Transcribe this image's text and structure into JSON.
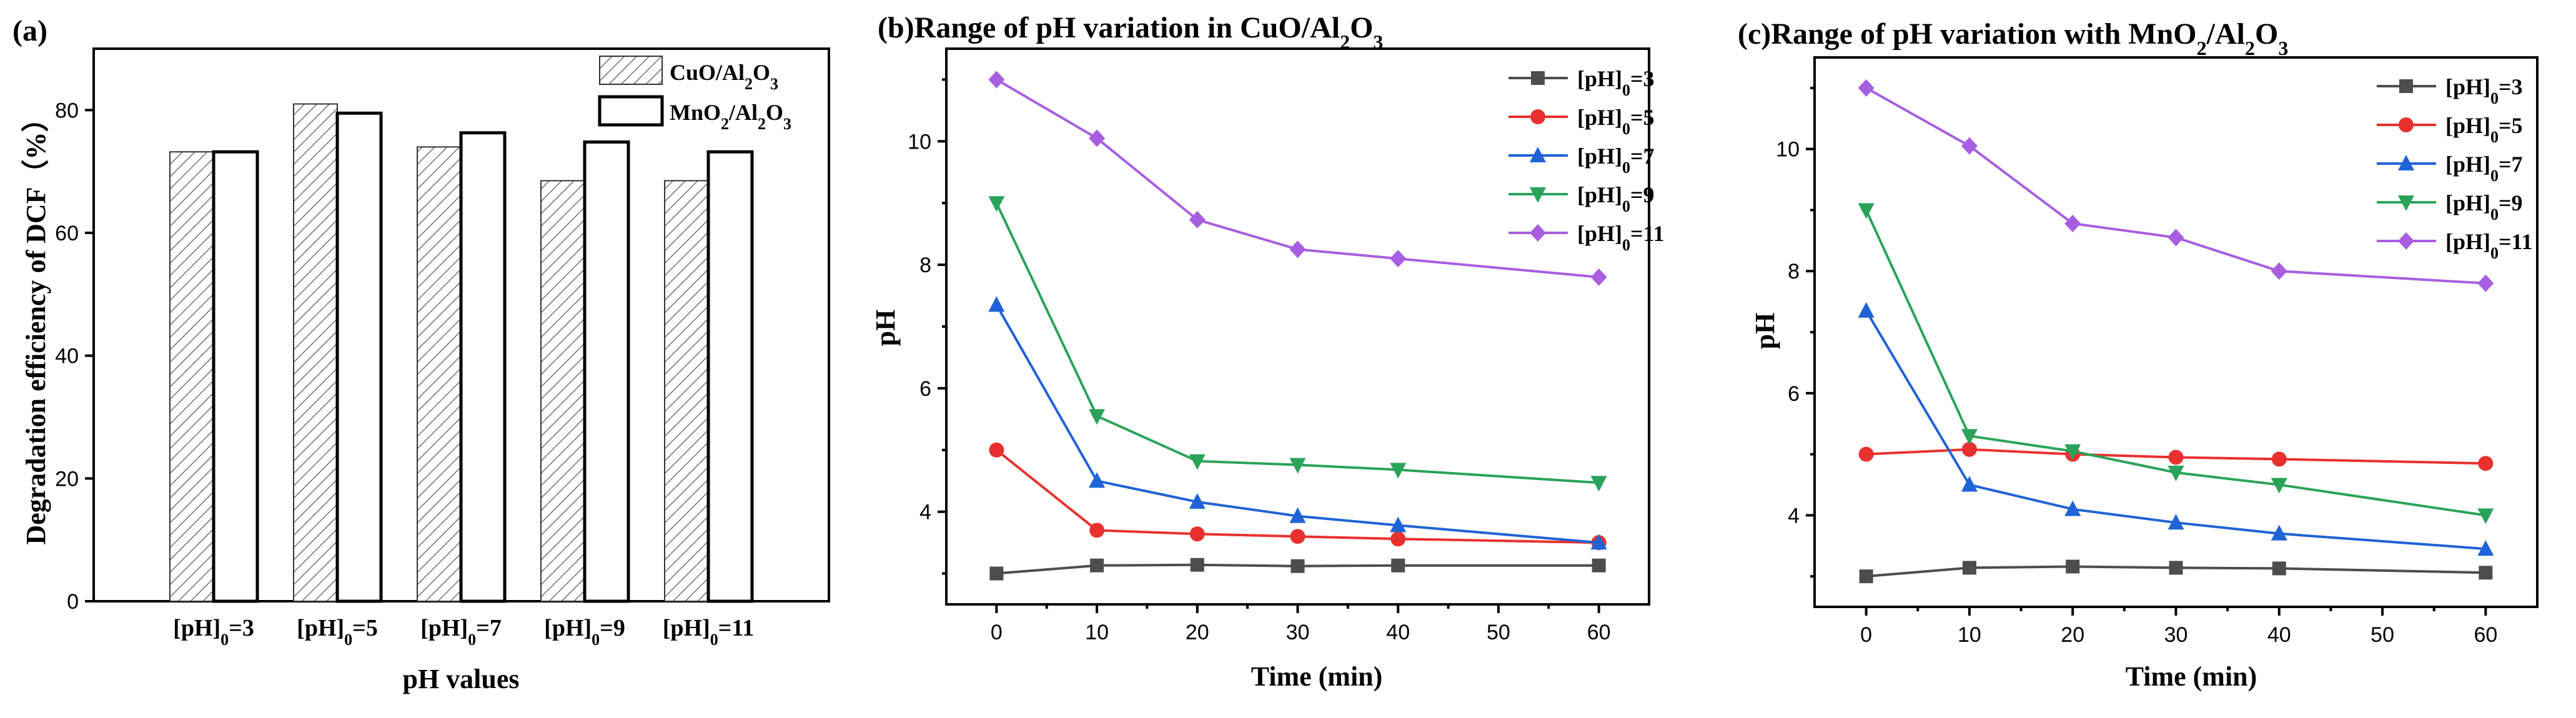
{
  "chart_data": [
    {
      "type": "bar",
      "panel_label": "(a)",
      "title": "",
      "xlabel": "pH values",
      "ylabel": "Degradation efficiency of DCF（%）",
      "ylim": [
        0,
        90
      ],
      "yticks": [
        0,
        20,
        40,
        60,
        80
      ],
      "categories": [
        {
          "base": "[pH]",
          "sub": "0",
          "rest": "=3"
        },
        {
          "base": "[pH]",
          "sub": "0",
          "rest": "=5"
        },
        {
          "base": "[pH]",
          "sub": "0",
          "rest": "=7"
        },
        {
          "base": "[pH]",
          "sub": "0",
          "rest": "=9"
        },
        {
          "base": "[pH]",
          "sub": "0",
          "rest": "=11"
        }
      ],
      "series": [
        {
          "name": "CuO/Al₂O₃",
          "legend": {
            "a": "CuO/Al",
            "s1": "2",
            "b": "O",
            "s2": "3"
          },
          "pattern": "hatch",
          "values": [
            73.2,
            81.0,
            74.0,
            68.5,
            68.5
          ]
        },
        {
          "name": "MnO₂/Al₂O₃",
          "legend": {
            "a": "MnO",
            "s1": "2",
            "b": "/Al",
            "s2": "2",
            "c": "O",
            "s3": "3"
          },
          "pattern": "open",
          "values": [
            73.2,
            79.5,
            76.3,
            74.8,
            73.2
          ]
        }
      ],
      "legend_position": "top-right"
    },
    {
      "type": "line",
      "panel_label": "(b)",
      "title": {
        "a": "(b)Range of pH variation in CuO/Al",
        "s1": "2",
        "b": "O",
        "s2": "3"
      },
      "xlabel": "Time (min)",
      "ylabel": "pH",
      "xlim": [
        -5,
        65
      ],
      "ylim": [
        2.5,
        11.5
      ],
      "xticks": [
        0,
        10,
        20,
        30,
        40,
        50,
        60
      ],
      "yticks": [
        4,
        6,
        8,
        10
      ],
      "x": [
        0,
        10,
        20,
        30,
        40,
        60
      ],
      "series": [
        {
          "label": "=3",
          "marker": "square",
          "color": "#4d4d4d",
          "values": [
            3.0,
            3.13,
            3.14,
            3.12,
            3.13,
            3.13
          ]
        },
        {
          "label": "=5",
          "marker": "circle",
          "color": "#e8312f",
          "values": [
            5.0,
            3.7,
            3.64,
            3.6,
            3.56,
            3.5
          ]
        },
        {
          "label": "=7",
          "marker": "triangle-up",
          "color": "#1f63d6",
          "values": [
            7.35,
            4.5,
            4.16,
            3.93,
            3.78,
            3.5
          ]
        },
        {
          "label": "=9",
          "marker": "triangle-down",
          "color": "#2aa35a",
          "values": [
            9.0,
            5.55,
            4.82,
            4.76,
            4.68,
            4.47
          ]
        },
        {
          "label": "=11",
          "marker": "diamond",
          "color": "#a85ee0",
          "values": [
            11.0,
            10.05,
            8.73,
            8.25,
            8.1,
            7.8
          ]
        }
      ],
      "legend_base": "[pH]",
      "legend_sub": "0",
      "legend_position": "top-right"
    },
    {
      "type": "line",
      "panel_label": "(c)",
      "title": {
        "a": "(c)Range of pH variation with MnO",
        "s1": "2",
        "b": "/Al",
        "s2": "2",
        "c": "O",
        "s3": "3"
      },
      "xlabel": "Time (min)",
      "ylabel": "pH",
      "xlim": [
        -5,
        65
      ],
      "ylim": [
        2.5,
        11.5
      ],
      "xticks": [
        0,
        10,
        20,
        30,
        40,
        50,
        60
      ],
      "yticks": [
        4,
        6,
        8,
        10
      ],
      "x": [
        0,
        10,
        20,
        30,
        40,
        60
      ],
      "series": [
        {
          "label": "=3",
          "marker": "square",
          "color": "#4d4d4d",
          "values": [
            3.0,
            3.14,
            3.16,
            3.14,
            3.13,
            3.06
          ]
        },
        {
          "label": "=5",
          "marker": "circle",
          "color": "#e8312f",
          "values": [
            5.0,
            5.08,
            5.0,
            4.95,
            4.92,
            4.85
          ]
        },
        {
          "label": "=7",
          "marker": "triangle-up",
          "color": "#1f63d6",
          "values": [
            7.35,
            4.5,
            4.1,
            3.88,
            3.7,
            3.45
          ]
        },
        {
          "label": "=9",
          "marker": "triangle-down",
          "color": "#2aa35a",
          "values": [
            9.0,
            5.3,
            5.05,
            4.7,
            4.5,
            4.0
          ]
        },
        {
          "label": "=11",
          "marker": "diamond",
          "color": "#a85ee0",
          "values": [
            11.0,
            10.05,
            8.78,
            8.55,
            8.0,
            7.8
          ]
        }
      ],
      "legend_base": "[pH]",
      "legend_sub": "0",
      "legend_position": "top-right"
    }
  ]
}
